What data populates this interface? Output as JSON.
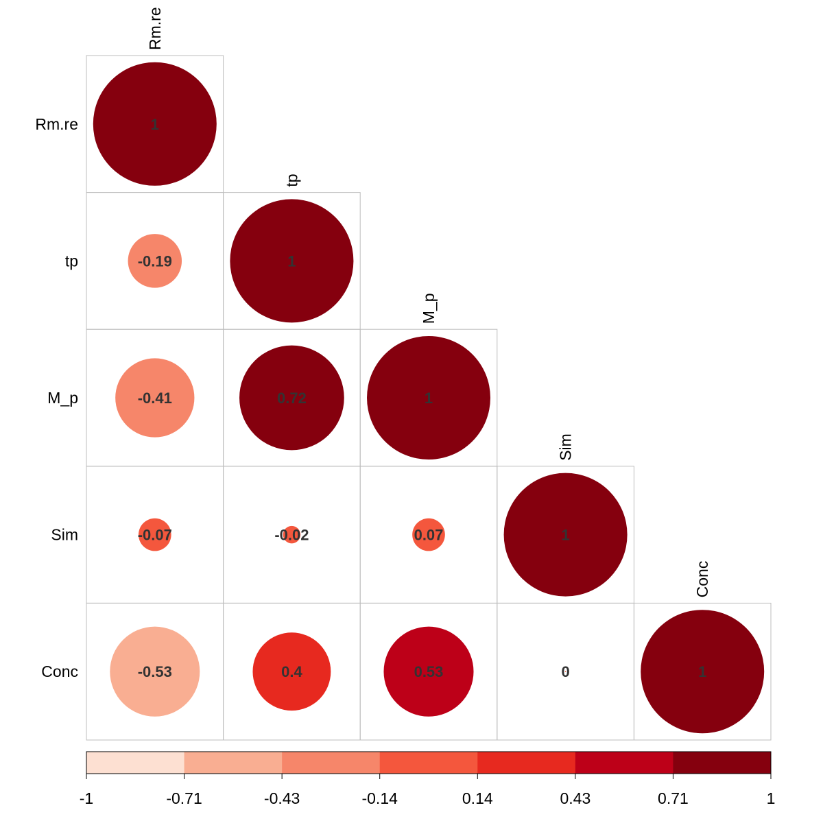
{
  "chart_data": {
    "type": "heatmap",
    "variables": [
      "Rm.re",
      "tp",
      "M_p",
      "Sim",
      "Conc"
    ],
    "matrix": [
      [
        1,
        null,
        null,
        null,
        null
      ],
      [
        -0.19,
        1,
        null,
        null,
        null
      ],
      [
        -0.41,
        0.72,
        1,
        null,
        null
      ],
      [
        -0.07,
        -0.02,
        0.07,
        1,
        null
      ],
      [
        -0.53,
        0.4,
        0.53,
        0,
        1
      ]
    ],
    "value_labels": [
      [
        "1",
        "",
        "",
        "",
        ""
      ],
      [
        "-0.19",
        "1",
        "",
        "",
        ""
      ],
      [
        "-0.41",
        "0.72",
        "1",
        "",
        ""
      ],
      [
        "-0.07",
        "-0.02",
        "0.07",
        "1",
        ""
      ],
      [
        "-0.53",
        "0.4",
        "0.53",
        "0",
        "1"
      ]
    ],
    "layout": "lower-triangular",
    "glyph": "circle",
    "colorbar": {
      "ticks": [
        "-1",
        "-0.71",
        "-0.43",
        "-0.14",
        "0.14",
        "0.43",
        "0.71",
        "1"
      ],
      "range": [
        -1,
        1
      ],
      "colors": [
        "#FDE0D2",
        "#F9AE92",
        "#F6866A",
        "#F4573D",
        "#E7291F",
        "#BD0018",
        "#85000E"
      ],
      "placement": "bottom"
    }
  }
}
